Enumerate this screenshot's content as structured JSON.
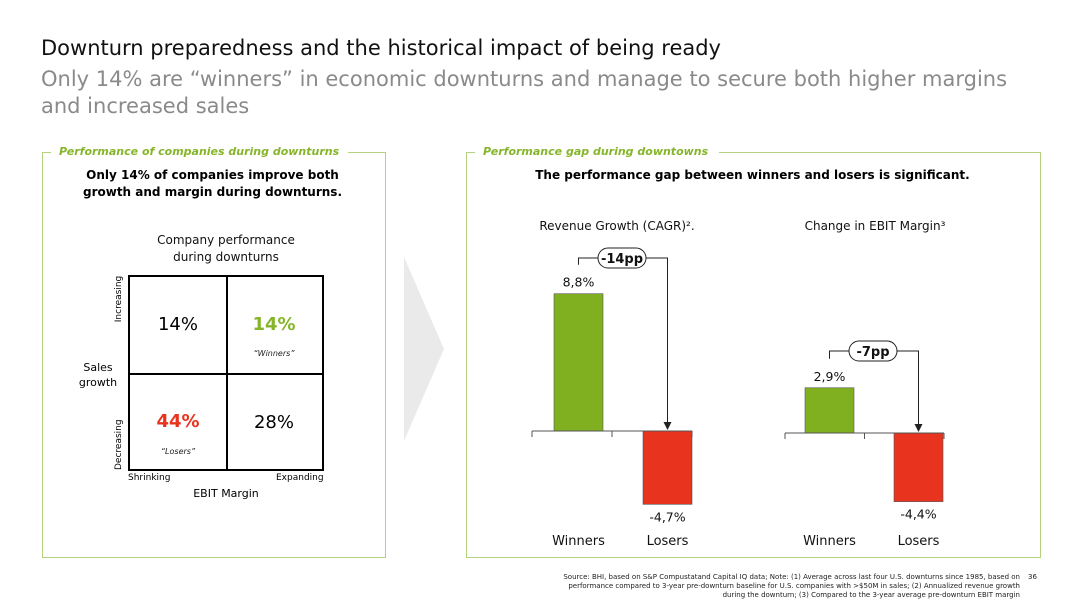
{
  "slide": {
    "title": "Downturn preparedness and the historical impact of being ready",
    "subtitle": "Only 14% are “winners” in economic downturns and manage to secure both higher margins and increased sales",
    "page_number": "36",
    "footnote": "Source: BHI, based on S&P Compustatand Capital IQ data; Note: (1) Average across last four U.S. downturns since 1985, based on performance compared to 3-year pre-downturn baseline for U.S. companies with >$50M in sales; (2) Annualized revenue growth during the downturn; (3) Compared to the 3-year average pre-downturn EBIT margin"
  },
  "left_panel": {
    "label": "Performance of companies during downturns",
    "headline": "Only 14% of companies improve both growth and margin during downturns.",
    "matrix_title": "Company performance during downturns",
    "y_axis_title": "Sales growth",
    "y_top": "Increasing",
    "y_bottom": "Decreasing",
    "x_axis_title": "EBIT Margin",
    "x_left": "Shrinking",
    "x_right": "Expanding",
    "cells": {
      "top_left": {
        "value": "14%"
      },
      "top_right": {
        "value": "14%",
        "sub": "“Winners”"
      },
      "bottom_left": {
        "value": "44%",
        "sub": "“Losers”"
      },
      "bottom_right": {
        "value": "28%"
      }
    }
  },
  "right_panel": {
    "label": "Performance gap during downtowns",
    "headline": "The performance gap between winners and losers is significant."
  },
  "colors": {
    "green": "#80b020",
    "red": "#e8331e",
    "accent_text_green": "#86b52a",
    "accent_text_red": "#e8331e",
    "panel_border": "#b5d27f"
  },
  "chart_data": [
    {
      "type": "bar",
      "title": "Revenue Growth (CAGR)².",
      "categories": [
        "Winners",
        "Losers"
      ],
      "values": [
        8.8,
        -4.7
      ],
      "data_labels": [
        "8,8%",
        "-4,7%"
      ],
      "gap_label": "-14pp",
      "colors": [
        "#80b020",
        "#e8331e"
      ]
    },
    {
      "type": "bar",
      "title": "Change in EBIT Margin³",
      "categories": [
        "Winners",
        "Losers"
      ],
      "values": [
        2.9,
        -4.4
      ],
      "data_labels": [
        "2,9%",
        "-4,4%"
      ],
      "gap_label": "-7pp",
      "colors": [
        "#80b020",
        "#e8331e"
      ]
    }
  ]
}
